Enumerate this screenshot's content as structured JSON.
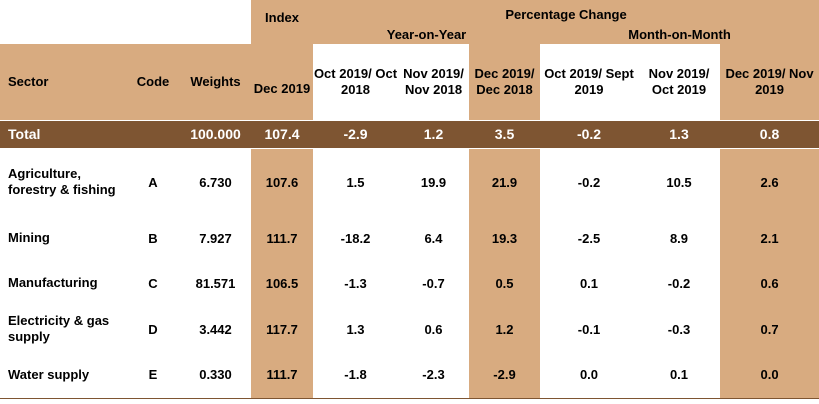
{
  "header": {
    "index": "Index",
    "pct_change": "Percentage Change",
    "yoy": "Year-on-Year",
    "mom": "Month-on-Month",
    "sector": "Sector",
    "code": "Code",
    "weights": "Weights",
    "dec2019": "Dec 2019",
    "yoy_cols": [
      "Oct 2019/ Oct 2018",
      "Nov 2019/ Nov 2018",
      "Dec 2019/ Dec 2018"
    ],
    "mom_cols": [
      "Oct 2019/ Sept 2019",
      "Nov 2019/ Oct 2019",
      "Dec 2019/ Nov 2019"
    ]
  },
  "total": {
    "sector": "Total",
    "code": "",
    "weight": "100.000",
    "index": "107.4",
    "yoy": [
      "-2.9",
      "1.2",
      "3.5"
    ],
    "mom": [
      "-0.2",
      "1.3",
      "0.8"
    ]
  },
  "rows": [
    {
      "sector": "Agriculture, forestry & fishing",
      "code": "A",
      "weight": "6.730",
      "index": "107.6",
      "yoy": [
        "1.5",
        "19.9",
        "21.9"
      ],
      "mom": [
        "-0.2",
        "10.5",
        "2.6"
      ]
    },
    {
      "sector": "Mining",
      "code": "B",
      "weight": "7.927",
      "index": "111.7",
      "yoy": [
        "-18.2",
        "6.4",
        "19.3"
      ],
      "mom": [
        "-2.5",
        "8.9",
        "2.1"
      ]
    },
    {
      "sector": "Manufacturing",
      "code": "C",
      "weight": "81.571",
      "index": "106.5",
      "yoy": [
        "-1.3",
        "-0.7",
        "0.5"
      ],
      "mom": [
        "0.1",
        "-0.2",
        "0.6"
      ]
    },
    {
      "sector": "Electricity & gas supply",
      "code": "D",
      "weight": "3.442",
      "index": "117.7",
      "yoy": [
        "1.3",
        "0.6",
        "1.2"
      ],
      "mom": [
        "-0.1",
        "-0.3",
        "0.7"
      ]
    },
    {
      "sector": "Water supply",
      "code": "E",
      "weight": "0.330",
      "index": "111.7",
      "yoy": [
        "-1.8",
        "-2.3",
        "-2.9"
      ],
      "mom": [
        "0.0",
        "0.1",
        "0.0"
      ]
    }
  ]
}
